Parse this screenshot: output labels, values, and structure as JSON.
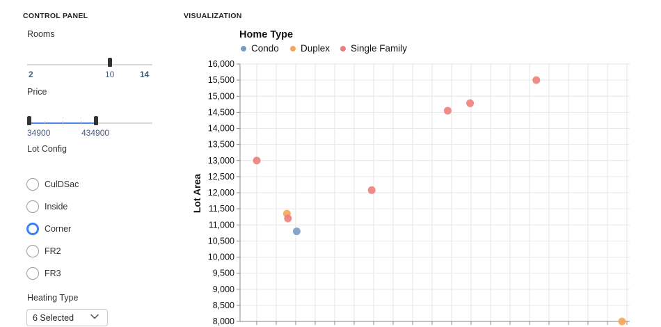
{
  "headers": {
    "control_panel": "CONTROL PANEL",
    "visualization": "VISUALIZATION"
  },
  "controls": {
    "rooms": {
      "label": "Rooms",
      "min": 2,
      "max": 14,
      "value": 10,
      "min_label": "2",
      "value_label": "10",
      "max_label": "14"
    },
    "price": {
      "label": "Price",
      "low": 34900,
      "high": 434900,
      "low_label": "34900",
      "high_label": "434900"
    },
    "lot_config": {
      "label": "Lot Config",
      "options": [
        "CulDSac",
        "Inside",
        "Corner",
        "FR2",
        "FR3"
      ],
      "selected": "Corner"
    },
    "heating_type": {
      "label": "Heating Type",
      "value": "6 Selected",
      "icon": "chevron-down-icon"
    }
  },
  "legend": {
    "title": "Home Type",
    "items": [
      {
        "name": "Condo",
        "color": "#7b9bc3"
      },
      {
        "name": "Duplex",
        "color": "#f5a65b"
      },
      {
        "name": "Single Family",
        "color": "#ec7f7b"
      }
    ]
  },
  "chart_data": {
    "type": "scatter",
    "ylabel": "Lot Area",
    "ylim": [
      8000,
      16000
    ],
    "yticks": [
      "8,000",
      "8,500",
      "9,000",
      "9,500",
      "10,000",
      "10,500",
      "11,000",
      "11,500",
      "12,000",
      "12,500",
      "13,000",
      "13,500",
      "14,000",
      "14,500",
      "15,000",
      "15,500",
      "16,000"
    ],
    "grid": true,
    "series": [
      {
        "name": "Condo",
        "color": "#7b9bc3",
        "points": [
          {
            "x": 2.05,
            "y": 10800
          }
        ]
      },
      {
        "name": "Duplex",
        "color": "#f5a65b",
        "points": [
          {
            "x": 1.55,
            "y": 11350
          },
          {
            "x": 18.75,
            "y": 8000
          }
        ]
      },
      {
        "name": "Single Family",
        "color": "#ec7f7b",
        "points": [
          {
            "x": 0,
            "y": 13000
          },
          {
            "x": 1.6,
            "y": 11200
          },
          {
            "x": 5.9,
            "y": 12080
          },
          {
            "x": 9.8,
            "y": 14550
          },
          {
            "x": 10.95,
            "y": 14780
          },
          {
            "x": 14.35,
            "y": 15500
          }
        ]
      }
    ]
  }
}
